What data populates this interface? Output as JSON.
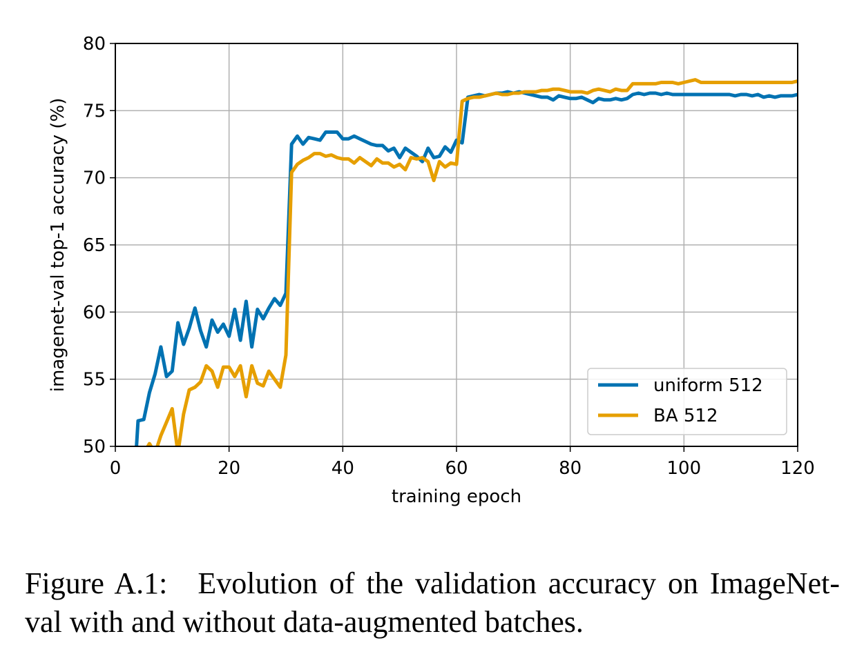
{
  "caption": {
    "label": "Figure A.1:",
    "text": "Evolution of the validation accuracy on ImageNet-val with and without data-augmented batches."
  },
  "chart_data": {
    "type": "line",
    "xlabel": "training epoch",
    "ylabel": "imagenet-val top-1 accuracy (%)",
    "xlim": [
      0,
      120
    ],
    "ylim": [
      50,
      80
    ],
    "xticks": [
      "0",
      "20",
      "40",
      "60",
      "80",
      "100",
      "120"
    ],
    "yticks": [
      "50",
      "55",
      "60",
      "65",
      "70",
      "75",
      "80"
    ],
    "grid": true,
    "legend_position": "lower-right",
    "series": [
      {
        "name": "uniform 512",
        "color": "#0072b2",
        "x": [
          3,
          4,
          5,
          6,
          7,
          8,
          9,
          10,
          11,
          12,
          13,
          14,
          15,
          16,
          17,
          18,
          19,
          20,
          21,
          22,
          23,
          24,
          25,
          26,
          27,
          28,
          29,
          30,
          31,
          32,
          33,
          34,
          35,
          36,
          37,
          38,
          39,
          40,
          41,
          42,
          43,
          44,
          45,
          46,
          47,
          48,
          49,
          50,
          51,
          52,
          53,
          54,
          55,
          56,
          57,
          58,
          59,
          60,
          61,
          62,
          63,
          64,
          65,
          66,
          67,
          68,
          69,
          70,
          71,
          72,
          73,
          74,
          75,
          76,
          77,
          78,
          79,
          80,
          81,
          82,
          83,
          84,
          85,
          86,
          87,
          88,
          89,
          90,
          91,
          92,
          93,
          94,
          95,
          96,
          97,
          98,
          99,
          100,
          101,
          102,
          103,
          104,
          105,
          106,
          107,
          108,
          109,
          110,
          111,
          112,
          113,
          114,
          115,
          116,
          117,
          118,
          119,
          120
        ],
        "y": [
          45.0,
          51.9,
          52.0,
          54.0,
          55.4,
          57.4,
          55.2,
          55.6,
          59.2,
          57.6,
          58.8,
          60.3,
          58.6,
          57.4,
          59.4,
          58.5,
          59.1,
          58.2,
          60.2,
          57.9,
          60.8,
          57.4,
          60.2,
          59.5,
          60.3,
          61.0,
          60.5,
          61.4,
          72.5,
          73.1,
          72.5,
          73.0,
          72.9,
          72.8,
          73.4,
          73.4,
          73.4,
          72.9,
          72.9,
          73.1,
          72.9,
          72.7,
          72.5,
          72.4,
          72.4,
          72.0,
          72.2,
          71.5,
          72.2,
          71.9,
          71.6,
          71.2,
          72.2,
          71.5,
          71.6,
          72.3,
          71.9,
          72.8,
          72.6,
          76.0,
          76.1,
          76.2,
          76.1,
          76.2,
          76.3,
          76.3,
          76.4,
          76.3,
          76.4,
          76.3,
          76.2,
          76.1,
          76.0,
          76.0,
          75.8,
          76.1,
          76.0,
          75.9,
          75.9,
          76.0,
          75.8,
          75.6,
          75.9,
          75.8,
          75.8,
          75.9,
          75.8,
          75.9,
          76.2,
          76.3,
          76.2,
          76.3,
          76.3,
          76.2,
          76.3,
          76.2,
          76.2,
          76.2,
          76.2,
          76.2,
          76.2,
          76.2,
          76.2,
          76.2,
          76.2,
          76.2,
          76.1,
          76.2,
          76.2,
          76.1,
          76.2,
          76.0,
          76.1,
          76.0,
          76.1,
          76.1,
          76.1,
          76.2
        ]
      },
      {
        "name": "BA 512",
        "color": "#e69f00",
        "x": [
          5,
          6,
          7,
          8,
          9,
          10,
          11,
          12,
          13,
          14,
          15,
          16,
          17,
          18,
          19,
          20,
          21,
          22,
          23,
          24,
          25,
          26,
          27,
          28,
          29,
          30,
          31,
          32,
          33,
          34,
          35,
          36,
          37,
          38,
          39,
          40,
          41,
          42,
          43,
          44,
          45,
          46,
          47,
          48,
          49,
          50,
          51,
          52,
          53,
          54,
          55,
          56,
          57,
          58,
          59,
          60,
          61,
          62,
          63,
          64,
          65,
          66,
          67,
          68,
          69,
          70,
          71,
          72,
          73,
          74,
          75,
          76,
          77,
          78,
          79,
          80,
          81,
          82,
          83,
          84,
          85,
          86,
          87,
          88,
          89,
          90,
          91,
          92,
          93,
          94,
          95,
          96,
          97,
          98,
          99,
          100,
          101,
          102,
          103,
          104,
          105,
          106,
          107,
          108,
          109,
          110,
          111,
          112,
          113,
          114,
          115,
          116,
          117,
          118,
          119,
          120
        ],
        "y": [
          49.5,
          50.2,
          49.5,
          50.8,
          51.8,
          52.8,
          49.5,
          52.4,
          54.2,
          54.4,
          54.8,
          56.0,
          55.6,
          54.4,
          55.9,
          55.9,
          55.2,
          56.0,
          53.7,
          56.0,
          54.7,
          54.5,
          55.6,
          55.0,
          54.4,
          56.8,
          70.4,
          71.0,
          71.3,
          71.5,
          71.8,
          71.8,
          71.6,
          71.7,
          71.5,
          71.4,
          71.4,
          71.1,
          71.5,
          71.2,
          70.9,
          71.4,
          71.1,
          71.1,
          70.8,
          71.0,
          70.6,
          71.5,
          71.4,
          71.5,
          71.2,
          69.8,
          71.2,
          70.8,
          71.1,
          71.0,
          75.7,
          75.9,
          76.0,
          76.0,
          76.1,
          76.2,
          76.3,
          76.2,
          76.2,
          76.3,
          76.3,
          76.4,
          76.4,
          76.4,
          76.5,
          76.5,
          76.6,
          76.6,
          76.5,
          76.4,
          76.4,
          76.4,
          76.3,
          76.5,
          76.6,
          76.5,
          76.4,
          76.6,
          76.5,
          76.5,
          77.0,
          77.0,
          77.0,
          77.0,
          77.0,
          77.1,
          77.1,
          77.1,
          77.0,
          77.1,
          77.2,
          77.3,
          77.1,
          77.1,
          77.1,
          77.1,
          77.1,
          77.1,
          77.1,
          77.1,
          77.1,
          77.1,
          77.1,
          77.1,
          77.1,
          77.1,
          77.1,
          77.1,
          77.1,
          77.2
        ]
      }
    ]
  }
}
